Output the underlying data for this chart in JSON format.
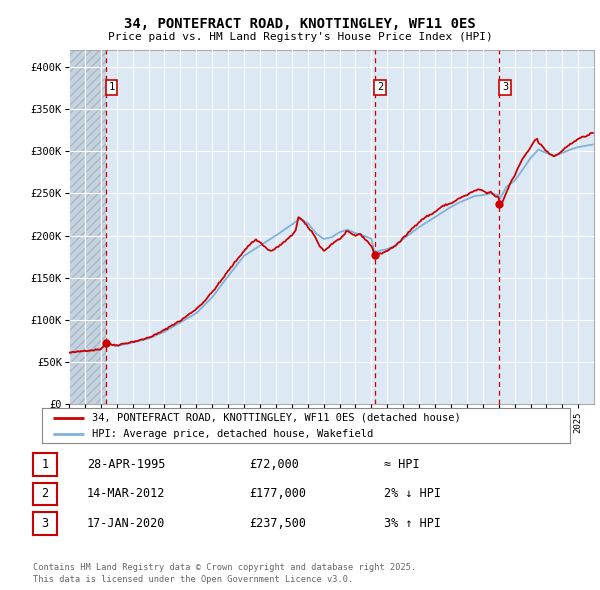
{
  "title_line1": "34, PONTEFRACT ROAD, KNOTTINGLEY, WF11 0ES",
  "title_line2": "Price paid vs. HM Land Registry's House Price Index (HPI)",
  "background_color": "#dce9f5",
  "grid_color": "#ffffff",
  "ylim": [
    0,
    420000
  ],
  "yticks": [
    0,
    50000,
    100000,
    150000,
    200000,
    250000,
    300000,
    350000,
    400000
  ],
  "ytick_labels": [
    "£0",
    "£50K",
    "£100K",
    "£150K",
    "£200K",
    "£250K",
    "£300K",
    "£350K",
    "£400K"
  ],
  "xlim_start": 1993.0,
  "xlim_end": 2025.99,
  "sale_dates": [
    1995.32,
    2012.21,
    2020.05
  ],
  "sale_prices": [
    72000,
    177000,
    237500
  ],
  "sale_labels": [
    "1",
    "2",
    "3"
  ],
  "legend_line1": "34, PONTEFRACT ROAD, KNOTTINGLEY, WF11 0ES (detached house)",
  "legend_line2": "HPI: Average price, detached house, Wakefield",
  "table_rows": [
    [
      "1",
      "28-APR-1995",
      "£72,000",
      "≈ HPI"
    ],
    [
      "2",
      "14-MAR-2012",
      "£177,000",
      "2% ↓ HPI"
    ],
    [
      "3",
      "17-JAN-2020",
      "£237,500",
      "3% ↑ HPI"
    ]
  ],
  "footer": "Contains HM Land Registry data © Crown copyright and database right 2025.\nThis data is licensed under the Open Government Licence v3.0.",
  "red_line_color": "#cc0000",
  "blue_line_color": "#7fb2d8"
}
